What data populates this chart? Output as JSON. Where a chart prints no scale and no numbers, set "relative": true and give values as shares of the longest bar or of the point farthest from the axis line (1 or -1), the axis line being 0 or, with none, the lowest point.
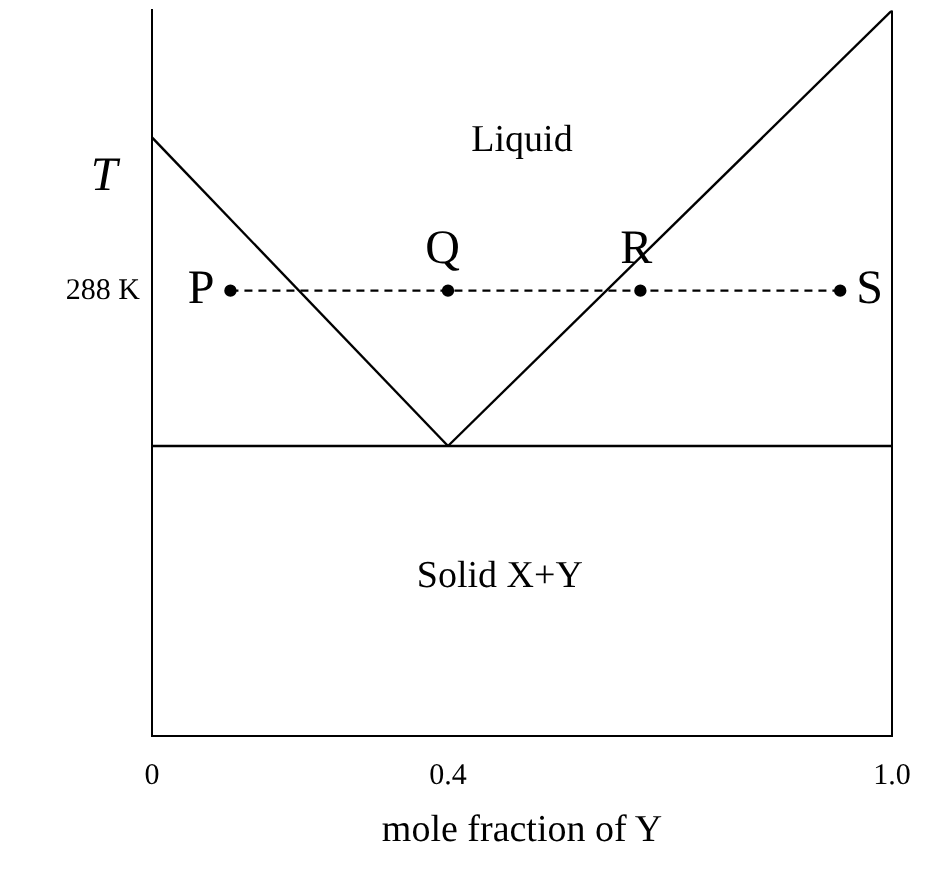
{
  "chart_data": {
    "type": "line",
    "relative": true,
    "xlabel": "mole fraction of Y",
    "ylabel": "T",
    "xlim": [
      0,
      1
    ],
    "xticks": [
      0,
      0.4,
      {
        "value": 1,
        "label": "1.0"
      }
    ],
    "grid": false,
    "legend": false,
    "series": [
      {
        "color": "#000000",
        "x": [
          0,
          0.4
        ],
        "values": [
          0.825,
          0.4
        ],
        "marker": "none",
        "line_style": "solid"
      },
      {
        "color": "#000000",
        "x": [
          0.4,
          1
        ],
        "values": [
          0.4,
          1
        ],
        "marker": "none",
        "line_style": "solid"
      },
      {
        "color": "#000000",
        "x": [
          0,
          1
        ],
        "values": [
          0.4,
          0.4
        ],
        "marker": "none",
        "line_style": "solid"
      },
      {
        "color": "#000000",
        "x": [
          0.106,
          0.4,
          0.66,
          0.93
        ],
        "values": [
          0.614,
          0.614,
          0.614,
          0.614
        ],
        "marker": "circle",
        "line_style": "dashed"
      }
    ],
    "annotations": [
      "Liquid",
      "Solid X+Y",
      {
        "text": "P",
        "x": 0.106,
        "y": 0.614
      },
      {
        "text": "Q",
        "x": 0.4,
        "y": 0.614
      },
      {
        "text": "R",
        "x": 0.66,
        "y": 0.614
      },
      {
        "text": "S",
        "x": 0.93,
        "y": 0.614
      },
      "288 K"
    ]
  }
}
